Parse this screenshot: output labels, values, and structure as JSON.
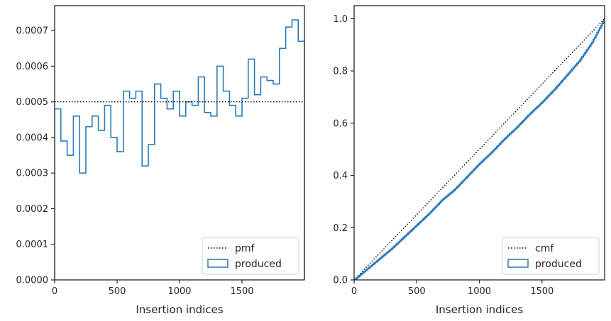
{
  "chart_data": [
    {
      "type": "step",
      "xlabel": "Insertion indices",
      "ylabel": "",
      "xlim": [
        0,
        2000
      ],
      "ylim": [
        0,
        0.00077
      ],
      "xticks": [
        0,
        500,
        1000,
        1500
      ],
      "xtick_labels": [
        "0",
        "500",
        "1000",
        "1500"
      ],
      "yticks": [
        0,
        0.0001,
        0.0002,
        0.0003,
        0.0004,
        0.0005,
        0.0006,
        0.0007
      ],
      "ytick_labels": [
        "0.0000",
        "0.0001",
        "0.0002",
        "0.0003",
        "0.0004",
        "0.0005",
        "0.0006",
        "0.0007"
      ],
      "reference": {
        "name": "pmf",
        "value": 0.0005,
        "style": "dotted",
        "color": "#000000"
      },
      "histogram": {
        "name": "produced",
        "color": "#2b7bb9",
        "bin_width": 50,
        "values": [
          0.00048,
          0.00039,
          0.00035,
          0.00046,
          0.0003,
          0.00043,
          0.00046,
          0.00042,
          0.00049,
          0.0004,
          0.00036,
          0.00053,
          0.00051,
          0.00053,
          0.00032,
          0.00038,
          0.00055,
          0.00051,
          0.00048,
          0.00053,
          0.00046,
          0.0005,
          0.00049,
          0.00057,
          0.00047,
          0.00046,
          0.0006,
          0.00053,
          0.00049,
          0.00046,
          0.00051,
          0.00062,
          0.00052,
          0.00057,
          0.00056,
          0.00055,
          0.00065,
          0.00071,
          0.00073,
          0.00067
        ]
      },
      "legend": {
        "placement": "lower right",
        "entries": [
          "pmf",
          "produced"
        ]
      }
    },
    {
      "type": "step",
      "xlabel": "Insertion indices",
      "ylabel": "",
      "xlim": [
        0,
        2000
      ],
      "ylim": [
        0,
        1.05
      ],
      "xticks": [
        0,
        500,
        1000,
        1500
      ],
      "xtick_labels": [
        "0",
        "500",
        "1000",
        "1500"
      ],
      "yticks": [
        0,
        0.2,
        0.4,
        0.6,
        0.8,
        1.0
      ],
      "ytick_labels": [
        "0.0",
        "0.2",
        "0.4",
        "0.6",
        "0.8",
        "1.0"
      ],
      "reference": {
        "name": "cmf",
        "points": [
          [
            0,
            0
          ],
          [
            2000,
            1.0
          ]
        ],
        "style": "dotted",
        "color": "#000000"
      },
      "series": {
        "name": "produced",
        "color": "#2b7bb9",
        "x": [
          0,
          100,
          200,
          300,
          400,
          500,
          600,
          700,
          800,
          900,
          1000,
          1100,
          1200,
          1300,
          1400,
          1500,
          1600,
          1700,
          1800,
          1900,
          2000
        ],
        "y": [
          0,
          0.04,
          0.08,
          0.12,
          0.165,
          0.21,
          0.255,
          0.305,
          0.345,
          0.395,
          0.445,
          0.49,
          0.54,
          0.585,
          0.635,
          0.68,
          0.73,
          0.785,
          0.84,
          0.91,
          1.0
        ]
      },
      "legend": {
        "placement": "lower right",
        "entries": [
          "cmf",
          "produced"
        ]
      }
    }
  ]
}
